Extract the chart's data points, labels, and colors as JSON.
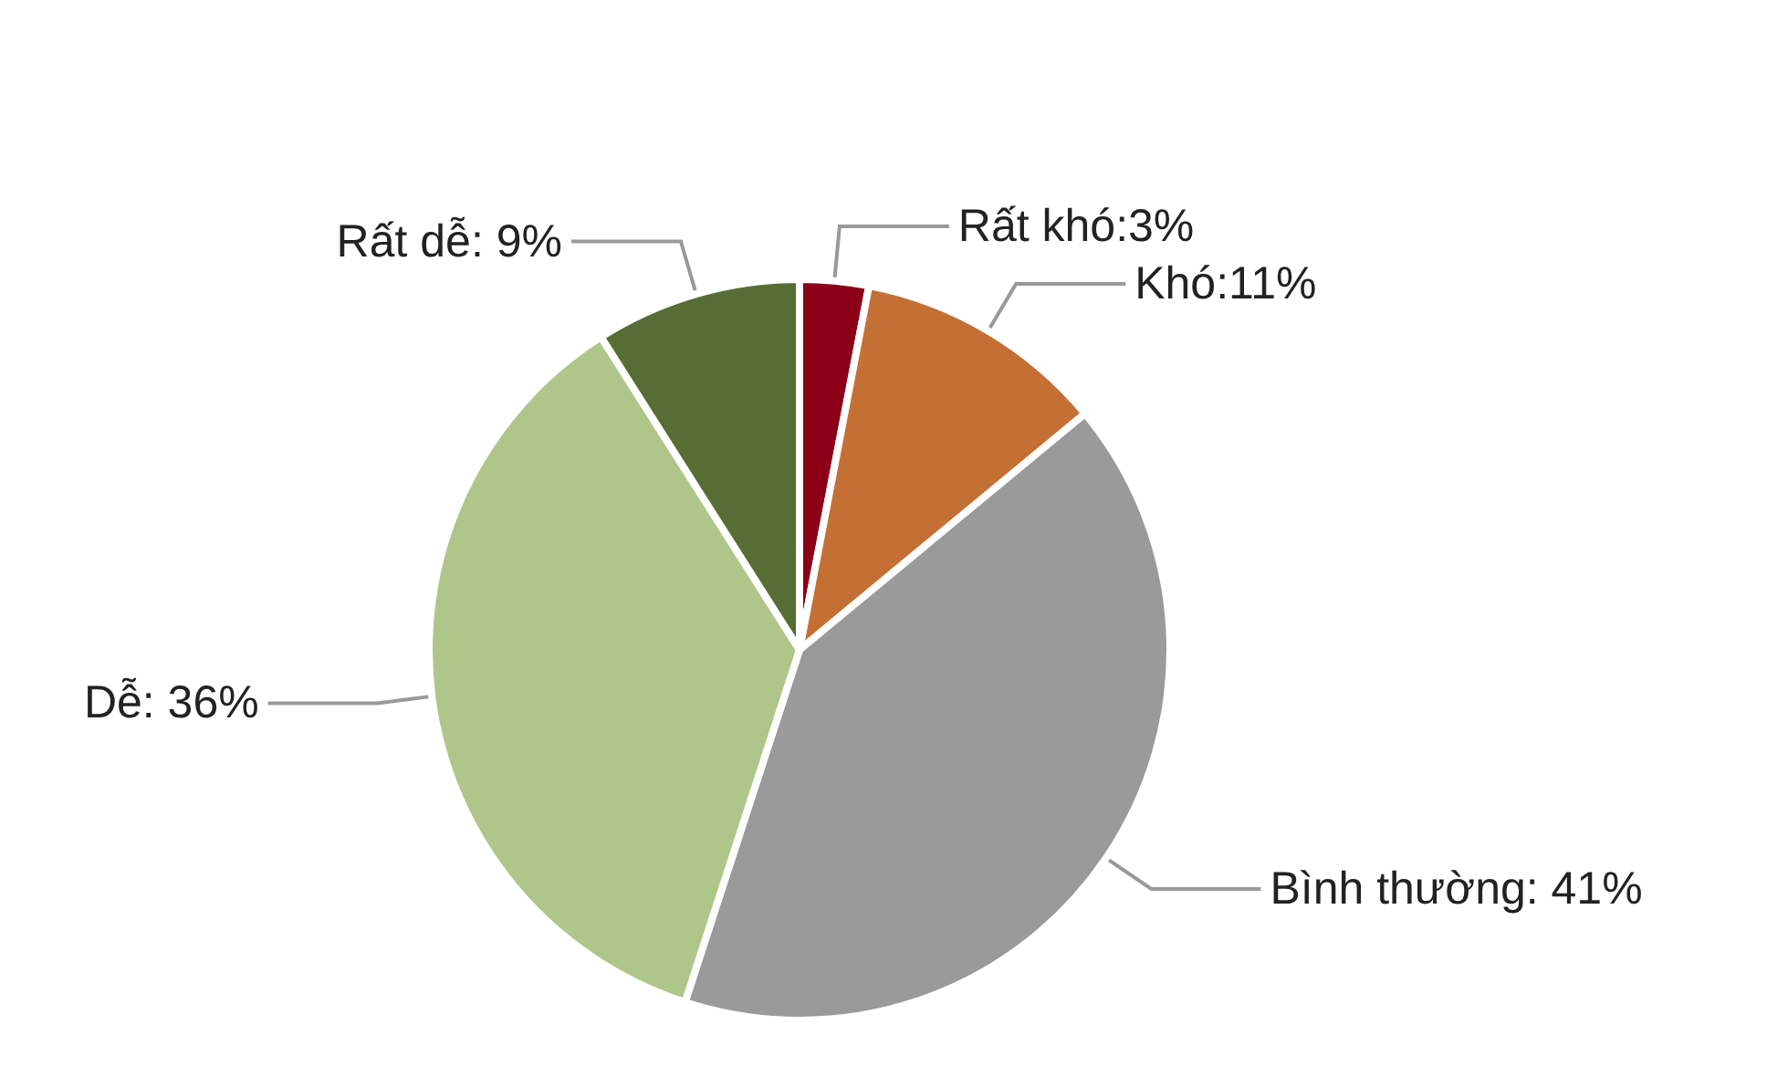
{
  "chart_data": {
    "type": "pie",
    "categories": [
      "Rất khó",
      "Khó",
      "Bình thường",
      "Dễ",
      "Rất dễ"
    ],
    "values": [
      3,
      11,
      41,
      36,
      9
    ],
    "colors": [
      "#8b0016",
      "#c47035",
      "#9a9a9a",
      "#afc68a",
      "#566d34"
    ],
    "value_labels": [
      ":3%",
      ":11%",
      ": 41%",
      ": 36%",
      ": 9%"
    ],
    "legend": false
  }
}
